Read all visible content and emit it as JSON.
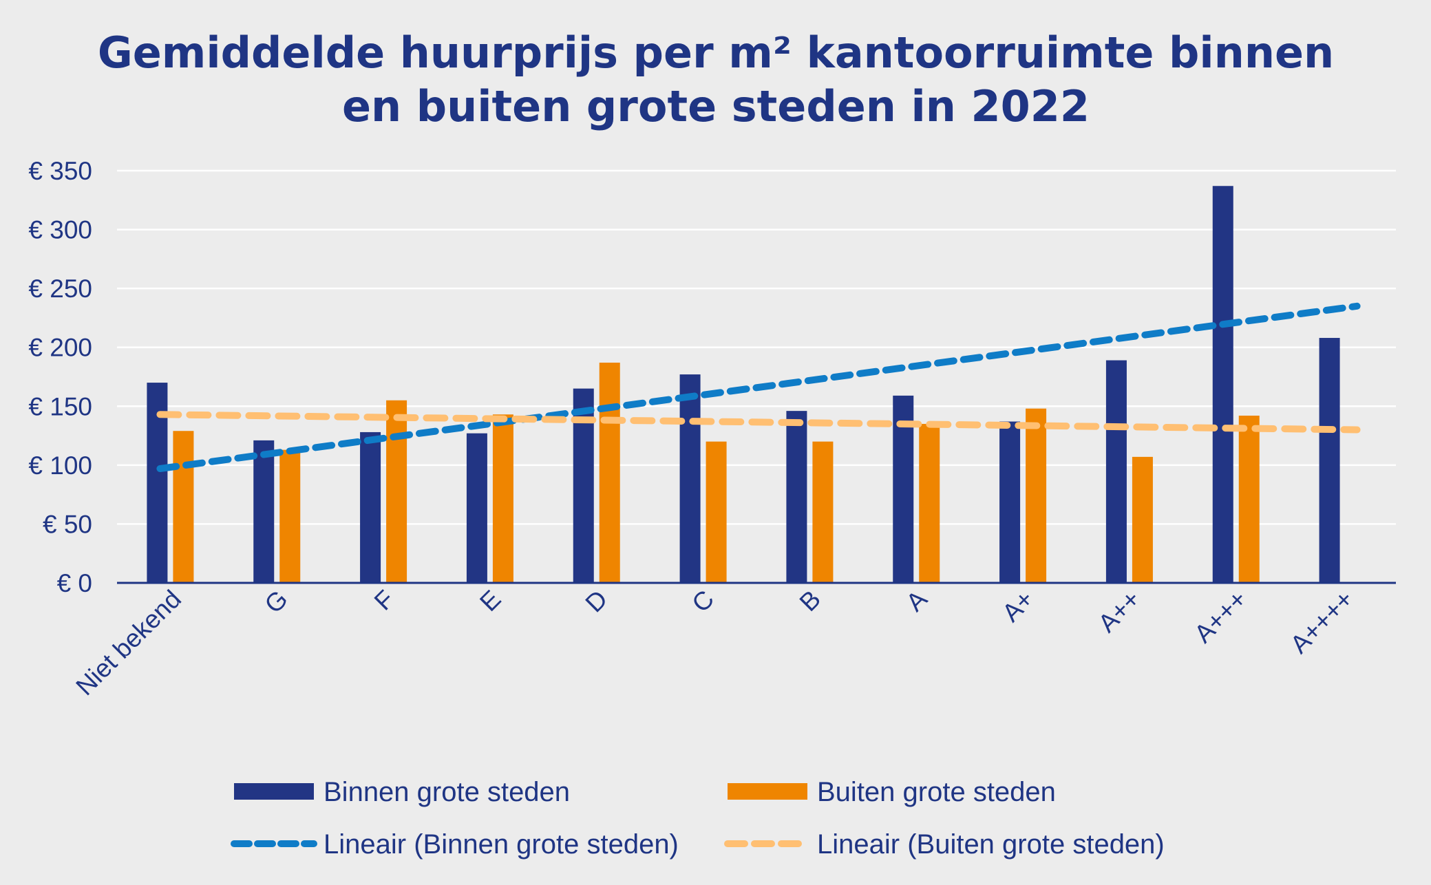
{
  "chart_data": {
    "type": "bar",
    "title_lines": [
      "Gemiddelde huurprijs per m² kantoorruimte binnen",
      "en buiten grote steden in 2022"
    ],
    "categories": [
      "Niet bekend",
      "G",
      "F",
      "E",
      "D",
      "C",
      "B",
      "A",
      "A+",
      "A++",
      "A+++",
      "A++++"
    ],
    "series": [
      {
        "name": "Binnen grote steden",
        "color": "#223584",
        "values": [
          170,
          121,
          128,
          127,
          165,
          177,
          146,
          159,
          137,
          189,
          337,
          208
        ]
      },
      {
        "name": "Buiten grote steden",
        "color": "#ef8500",
        "values": [
          129,
          113,
          155,
          143,
          187,
          120,
          120,
          135,
          148,
          107,
          142,
          null
        ]
      }
    ],
    "trendlines": [
      {
        "name": "Lineair (Binnen grote steden)",
        "color": "#0f7cc7",
        "start": 97,
        "end": 235
      },
      {
        "name": "Lineair (Buiten grote steden)",
        "color": "#ffbf72",
        "start": 143,
        "end": 130
      }
    ],
    "ylim": [
      0,
      350
    ],
    "yticks": [
      0,
      50,
      100,
      150,
      200,
      250,
      300,
      350
    ],
    "ytick_labels": [
      "€ 0",
      "€ 50",
      "€ 100",
      "€ 150",
      "€ 200",
      "€ 250",
      "€ 300",
      "€ 350"
    ],
    "grid": true,
    "legend_position": "bottom",
    "axis_color": "#1f3584",
    "grid_color": "#ffffff"
  }
}
